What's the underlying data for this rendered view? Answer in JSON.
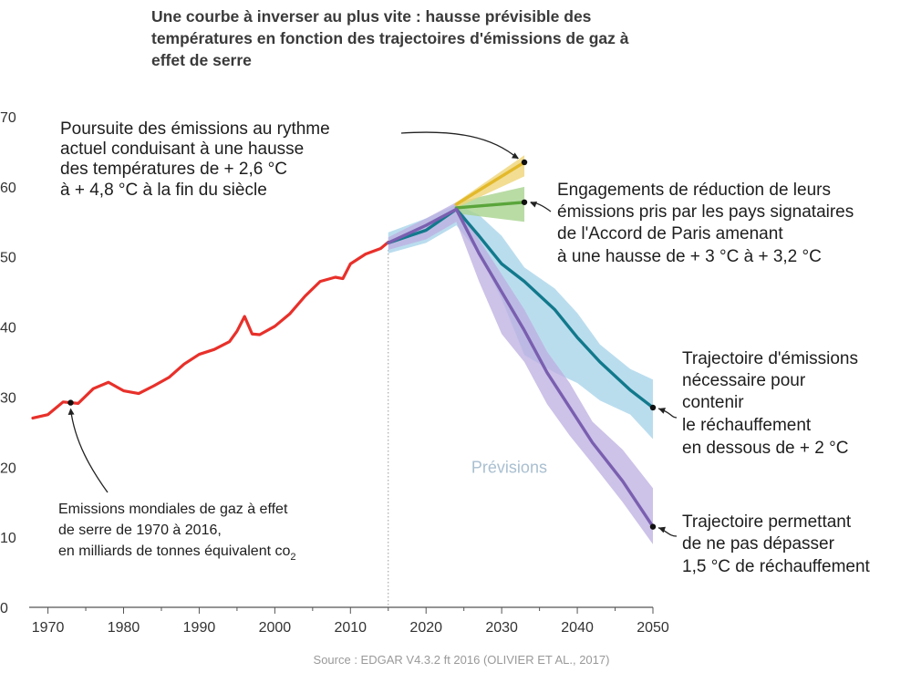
{
  "title_lines": [
    "Une courbe à inverser au plus vite : hausse prévisible des",
    "températures en fonction des trajectoires d'émissions de gaz à",
    "effet de serre"
  ],
  "source": "Source : EDGAR V4.3.2 ft 2016 (OLIVIER ET AL., 2017)",
  "forecast_label": "Prévisions",
  "annotations": {
    "current_rhythm": [
      "Poursuite des émissions au rythme",
      "actuel conduisant à une hausse",
      "des températures de + 2,6 °C",
      "à + 4,8 °C à la fin du siècle"
    ],
    "paris": [
      "Engagements de réduction de leurs",
      "émissions pris par les pays signataires",
      "de l'Accord de Paris amenant",
      "à une hausse de + 3 °C à + 3,2 °C"
    ],
    "two_degrees": [
      "Trajectoire d'émissions",
      "nécessaire pour",
      "contenir",
      "le réchauffement",
      "en dessous de + 2 °C"
    ],
    "one_five": [
      "Trajectoire permettant",
      "de ne pas dépasser",
      "1,5 °C de réchauffement"
    ],
    "historical": {
      "line1": "Emissions mondiales de gaz à effet",
      "line2": "de serre de 1970 à 2016,",
      "line3_main": "en milliards de tonnes équivalent co",
      "line3_sub": "2"
    }
  },
  "chart_data": {
    "type": "line",
    "xlim": [
      1968,
      2050
    ],
    "ylim": [
      0,
      70
    ],
    "x_ticks": [
      1970,
      1980,
      1990,
      2000,
      2010,
      2020,
      2030,
      2040,
      2050
    ],
    "y_ticks": [
      0,
      10,
      20,
      30,
      40,
      50,
      60,
      70
    ],
    "grid": false,
    "forecast_start_x": 2015,
    "colors": {
      "historical": "#e8302a",
      "current_rhythm": "#e3b92a",
      "current_rhythm_band": "#efd477",
      "paris": "#5aa53a",
      "paris_band": "#a8d38e",
      "two_degrees": "#12798c",
      "two_degrees_band": "#a9d4ea",
      "one_five": "#7a5fb0",
      "one_five_band": "#bcaee0"
    },
    "series": [
      {
        "key": "historical",
        "x": [
          1968,
          1970,
          1972,
          1974,
          1976,
          1978,
          1980,
          1982,
          1984,
          1986,
          1988,
          1990,
          1992,
          1994,
          1995,
          1996,
          1997,
          1998,
          2000,
          2002,
          2004,
          2006,
          2008,
          2009,
          2010,
          2012,
          2014,
          2015
        ],
        "y": [
          27,
          27.5,
          29.3,
          29.1,
          31.2,
          32.1,
          30.9,
          30.5,
          31.6,
          32.8,
          34.7,
          36.1,
          36.8,
          37.9,
          39.4,
          41.5,
          39.0,
          38.9,
          40.1,
          41.9,
          44.4,
          46.5,
          47.1,
          46.9,
          49.0,
          50.4,
          51.2,
          52.1
        ]
      },
      {
        "key": "current_rhythm",
        "x": [
          2024,
          2033
        ],
        "y": [
          57.5,
          63.5
        ],
        "band_upper": [
          57.8,
          64.5
        ],
        "band_lower": [
          57.0,
          61.5
        ]
      },
      {
        "key": "paris",
        "x": [
          2024,
          2033
        ],
        "y": [
          57.0,
          57.8
        ],
        "band_upper": [
          57.8,
          60.0
        ],
        "band_lower": [
          56.2,
          55.0
        ]
      },
      {
        "key": "two_degrees",
        "x": [
          2015,
          2020,
          2024,
          2027,
          2030,
          2033,
          2037,
          2040,
          2043,
          2047,
          2050
        ],
        "y": [
          52.0,
          53.8,
          56.8,
          53.0,
          49.0,
          46.5,
          42.5,
          38.5,
          35.0,
          31.0,
          28.5
        ],
        "band_upper": [
          53.5,
          55.5,
          57.5,
          56.0,
          53.0,
          48.5,
          45.5,
          42.0,
          37.5,
          34.0,
          32.5
        ],
        "band_lower": [
          50.5,
          52.0,
          54.5,
          50.5,
          44.0,
          36.0,
          33.5,
          32.0,
          29.5,
          27.5,
          24.0
        ]
      },
      {
        "key": "one_five",
        "x": [
          2015,
          2020,
          2024,
          2027,
          2030,
          2033,
          2036,
          2039,
          2042,
          2046,
          2050
        ],
        "y": [
          52.0,
          54.5,
          56.8,
          50.5,
          45.0,
          39.5,
          33.5,
          28.5,
          23.5,
          18.0,
          11.5
        ],
        "band_upper": [
          52.8,
          55.5,
          57.8,
          52.5,
          47.5,
          42.5,
          36.5,
          32.0,
          26.5,
          22.5,
          17.0
        ],
        "band_lower": [
          51.0,
          52.5,
          55.0,
          46.5,
          39.0,
          35.0,
          29.0,
          24.5,
          20.5,
          15.0,
          9.0
        ]
      }
    ],
    "markers": [
      {
        "key": "historical",
        "x": 1973,
        "y": 29.2
      },
      {
        "key": "current_rhythm",
        "x": 2033,
        "y": 63.5
      },
      {
        "key": "paris",
        "x": 2033,
        "y": 57.8
      },
      {
        "key": "two_degrees",
        "x": 2050,
        "y": 28.5
      },
      {
        "key": "one_five",
        "x": 2050,
        "y": 11.5
      }
    ]
  }
}
